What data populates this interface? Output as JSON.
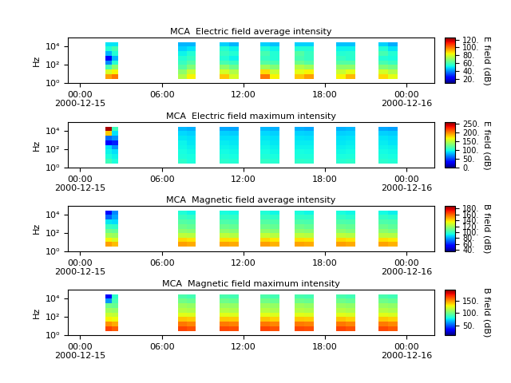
{
  "chart_data": [
    {
      "type": "heatmap",
      "title": "MCA  Electric field average intensity",
      "y_label": "Hz",
      "colorbar_label": "E field (dB)",
      "log": "y",
      "xlim": [
        -0.9,
        26.05
      ],
      "xticks": [
        {
          "value": 0,
          "label": "00:00\n2000-12-15"
        },
        {
          "value": 6,
          "label": "06:00"
        },
        {
          "value": 12,
          "label": "12:00"
        },
        {
          "value": 18,
          "label": "18:00"
        },
        {
          "value": 24,
          "label": "00:00\n2000-12-16"
        }
      ],
      "ylim": [
        1,
        100000
      ],
      "yticks": [
        {
          "value": 1,
          "label": "10⁰"
        },
        {
          "value": 100,
          "label": "10²"
        },
        {
          "value": 10000,
          "label": "10⁴"
        }
      ],
      "time_edges": [
        [
          1.87,
          2.34,
          2.81
        ],
        [
          7.2,
          7.85,
          8.49
        ],
        [
          10.25,
          10.95,
          11.65
        ],
        [
          13.23,
          13.93,
          14.64
        ],
        [
          15.8,
          16.5,
          17.2
        ],
        [
          18.85,
          19.55,
          20.26
        ],
        [
          21.96,
          22.66,
          23.36
        ]
      ],
      "freq_edges": [
        3,
        10,
        30,
        100,
        300,
        1000,
        3000,
        10000,
        30000
      ],
      "cells": [
        [
          [
            95,
            80,
            60,
            40,
            25,
            45,
            55,
            50
          ],
          [
            100,
            85,
            70,
            55,
            45,
            55,
            60,
            50
          ]
        ],
        [
          [
            75,
            70,
            62,
            58,
            55,
            52,
            48,
            45
          ],
          [
            85,
            78,
            68,
            62,
            58,
            55,
            50,
            45
          ]
        ],
        [
          [
            90,
            80,
            70,
            60,
            55,
            58,
            55,
            48
          ],
          [
            80,
            75,
            65,
            58,
            52,
            55,
            52,
            45
          ]
        ],
        [
          [
            100,
            88,
            72,
            62,
            58,
            60,
            55,
            48
          ],
          [
            85,
            78,
            68,
            60,
            55,
            55,
            52,
            46
          ]
        ],
        [
          [
            90,
            82,
            75,
            65,
            60,
            62,
            55,
            48
          ],
          [
            95,
            85,
            72,
            62,
            58,
            58,
            55,
            48
          ]
        ],
        [
          [
            85,
            78,
            70,
            62,
            58,
            55,
            52,
            46
          ],
          [
            92,
            82,
            70,
            62,
            56,
            56,
            52,
            46
          ]
        ],
        [
          [
            88,
            80,
            68,
            60,
            55,
            60,
            55,
            48
          ],
          [
            82,
            75,
            66,
            58,
            54,
            55,
            50,
            44
          ]
        ]
      ],
      "colorbar_range": [
        10,
        125
      ],
      "colorbar_ticks": [
        {
          "value": 20,
          "label": "20."
        },
        {
          "value": 40,
          "label": "40."
        },
        {
          "value": 60,
          "label": "60."
        },
        {
          "value": 80,
          "label": "80."
        },
        {
          "value": 100,
          "label": "100."
        },
        {
          "value": 120,
          "label": "120."
        }
      ]
    },
    {
      "type": "heatmap",
      "title": "MCA  Electric field maximum intensity",
      "y_label": "Hz",
      "colorbar_label": "E field (dB)",
      "log": "y",
      "xlim": [
        -0.9,
        26.05
      ],
      "xticks": [
        {
          "value": 0,
          "label": "00:00\n2000-12-15"
        },
        {
          "value": 6,
          "label": "06:00"
        },
        {
          "value": 12,
          "label": "12:00"
        },
        {
          "value": 18,
          "label": "18:00"
        },
        {
          "value": 24,
          "label": "00:00\n2000-12-16"
        }
      ],
      "ylim": [
        1,
        100000
      ],
      "yticks": [
        {
          "value": 1,
          "label": "10⁰"
        },
        {
          "value": 100,
          "label": "10²"
        },
        {
          "value": 10000,
          "label": "10⁴"
        }
      ],
      "time_edges": [
        [
          1.87,
          2.34,
          2.81
        ],
        [
          7.2,
          7.85,
          8.49
        ],
        [
          10.25,
          10.95,
          11.65
        ],
        [
          13.23,
          13.93,
          14.64
        ],
        [
          15.8,
          16.5,
          17.2
        ],
        [
          18.85,
          19.55,
          20.26
        ],
        [
          21.96,
          22.66,
          23.36
        ]
      ],
      "freq_edges": [
        3,
        10,
        30,
        100,
        300,
        1000,
        3000,
        10000,
        30000
      ],
      "cells": [
        [
          [
            110,
            100,
            95,
            90,
            30,
            60,
            180,
            250
          ],
          [
            100,
            95,
            90,
            70,
            40,
            70,
            90,
            110
          ]
        ],
        [
          [
            105,
            100,
            98,
            96,
            95,
            92,
            88,
            80
          ],
          [
            100,
            98,
            96,
            94,
            92,
            90,
            86,
            78
          ]
        ],
        [
          [
            104,
            100,
            97,
            95,
            93,
            90,
            86,
            76
          ],
          [
            102,
            98,
            96,
            94,
            92,
            90,
            85,
            75
          ]
        ],
        [
          [
            106,
            101,
            98,
            96,
            94,
            92,
            88,
            80
          ],
          [
            103,
            99,
            96,
            94,
            92,
            90,
            86,
            78
          ]
        ],
        [
          [
            105,
            100,
            98,
            95,
            93,
            91,
            87,
            78
          ],
          [
            104,
            100,
            97,
            95,
            93,
            90,
            86,
            76
          ]
        ],
        [
          [
            103,
            99,
            96,
            94,
            92,
            90,
            86,
            78
          ],
          [
            105,
            100,
            97,
            95,
            93,
            91,
            87,
            80
          ]
        ],
        [
          [
            104,
            100,
            97,
            95,
            93,
            91,
            86,
            76
          ],
          [
            102,
            98,
            96,
            94,
            91,
            89,
            85,
            74
          ]
        ]
      ],
      "colorbar_range": [
        0,
        260
      ],
      "colorbar_ticks": [
        {
          "value": 0,
          "label": "0."
        },
        {
          "value": 50,
          "label": "50."
        },
        {
          "value": 100,
          "label": "100."
        },
        {
          "value": 150,
          "label": "150."
        },
        {
          "value": 200,
          "label": "200."
        },
        {
          "value": 250,
          "label": "250."
        }
      ]
    },
    {
      "type": "heatmap",
      "title": "MCA  Magnetic field average intensity",
      "y_label": "Hz",
      "colorbar_label": "B field (dB)",
      "log": "y",
      "xlim": [
        -0.9,
        26.05
      ],
      "xticks": [
        {
          "value": 0,
          "label": "00:00\n2000-12-15"
        },
        {
          "value": 6,
          "label": "06:00"
        },
        {
          "value": 12,
          "label": "12:00"
        },
        {
          "value": 18,
          "label": "18:00"
        },
        {
          "value": 24,
          "label": "00:00\n2000-12-16"
        }
      ],
      "ylim": [
        1,
        100000
      ],
      "yticks": [
        {
          "value": 1,
          "label": "10⁰"
        },
        {
          "value": 100,
          "label": "10²"
        },
        {
          "value": 10000,
          "label": "10⁴"
        }
      ],
      "time_edges": [
        [
          1.87,
          2.34,
          2.81
        ],
        [
          7.2,
          7.85,
          8.49
        ],
        [
          10.25,
          10.95,
          11.65
        ],
        [
          13.23,
          13.93,
          14.64
        ],
        [
          15.8,
          16.5,
          17.2
        ],
        [
          18.85,
          19.55,
          20.26
        ],
        [
          21.96,
          22.66,
          23.36
        ]
      ],
      "freq_edges": [
        3,
        10,
        30,
        100,
        300,
        1000,
        3000,
        10000,
        30000
      ],
      "cells": [
        [
          [
            150,
            135,
            120,
            110,
            100,
            90,
            70,
            55
          ],
          [
            145,
            130,
            118,
            108,
            98,
            88,
            80,
            75
          ]
        ],
        [
          [
            150,
            140,
            125,
            115,
            110,
            105,
            100,
            95
          ],
          [
            148,
            138,
            124,
            114,
            108,
            104,
            98,
            92
          ]
        ],
        [
          [
            149,
            139,
            125,
            115,
            109,
            104,
            99,
            94
          ],
          [
            148,
            138,
            123,
            114,
            108,
            103,
            98,
            93
          ]
        ],
        [
          [
            150,
            140,
            126,
            116,
            110,
            105,
            100,
            95
          ],
          [
            147,
            137,
            124,
            114,
            108,
            104,
            98,
            92
          ]
        ],
        [
          [
            149,
            139,
            125,
            115,
            110,
            104,
            99,
            94
          ],
          [
            148,
            138,
            124,
            114,
            108,
            103,
            98,
            92
          ]
        ],
        [
          [
            150,
            140,
            125,
            115,
            109,
            104,
            99,
            94
          ],
          [
            148,
            138,
            123,
            113,
            108,
            103,
            97,
            92
          ]
        ],
        [
          [
            149,
            139,
            124,
            115,
            109,
            104,
            99,
            93
          ],
          [
            147,
            137,
            123,
            113,
            107,
            103,
            97,
            91
          ]
        ]
      ],
      "colorbar_range": [
        35,
        190
      ],
      "colorbar_ticks": [
        {
          "value": 40,
          "label": "40."
        },
        {
          "value": 60,
          "label": "60."
        },
        {
          "value": 80,
          "label": "80."
        },
        {
          "value": 100,
          "label": "100."
        },
        {
          "value": 120,
          "label": "120."
        },
        {
          "value": 140,
          "label": "140."
        },
        {
          "value": 160,
          "label": "160."
        },
        {
          "value": 180,
          "label": "180."
        }
      ]
    },
    {
      "type": "heatmap",
      "title": "MCA  Magnetic field maximum intensity",
      "y_label": "Hz",
      "colorbar_label": "B field (dB)",
      "log": "y",
      "xlim": [
        -0.9,
        26.05
      ],
      "xticks": [
        {
          "value": 0,
          "label": "00:00\n2000-12-15"
        },
        {
          "value": 6,
          "label": "06:00"
        },
        {
          "value": 12,
          "label": "12:00"
        },
        {
          "value": 18,
          "label": "18:00"
        },
        {
          "value": 24,
          "label": "00:00\n2000-12-16"
        }
      ],
      "ylim": [
        1,
        100000
      ],
      "yticks": [
        {
          "value": 1,
          "label": "10⁰"
        },
        {
          "value": 100,
          "label": "10²"
        },
        {
          "value": 10000,
          "label": "10⁴"
        }
      ],
      "time_edges": [
        [
          1.87,
          2.34,
          2.81
        ],
        [
          7.2,
          7.85,
          8.49
        ],
        [
          10.25,
          10.95,
          11.65
        ],
        [
          13.23,
          13.93,
          14.64
        ],
        [
          15.8,
          16.5,
          17.2
        ],
        [
          18.85,
          19.55,
          20.26
        ],
        [
          21.96,
          22.66,
          23.36
        ]
      ],
      "freq_edges": [
        3,
        10,
        30,
        100,
        300,
        1000,
        3000,
        10000,
        30000
      ],
      "cells": [
        [
          [
            165,
            150,
            130,
            120,
            110,
            100,
            60,
            30
          ],
          [
            160,
            145,
            128,
            118,
            108,
            98,
            90,
            85
          ]
        ],
        [
          [
            165,
            155,
            140,
            125,
            115,
            110,
            100,
            92
          ],
          [
            162,
            152,
            138,
            124,
            114,
            108,
            98,
            90
          ]
        ],
        [
          [
            164,
            154,
            139,
            125,
            115,
            109,
            99,
            91
          ],
          [
            163,
            153,
            138,
            124,
            114,
            108,
            98,
            90
          ]
        ],
        [
          [
            165,
            155,
            140,
            126,
            116,
            110,
            100,
            92
          ],
          [
            162,
            152,
            137,
            124,
            113,
            108,
            98,
            90
          ]
        ],
        [
          [
            164,
            154,
            139,
            125,
            115,
            110,
            99,
            91
          ],
          [
            163,
            153,
            138,
            124,
            114,
            108,
            98,
            90
          ]
        ],
        [
          [
            165,
            155,
            140,
            125,
            115,
            109,
            99,
            91
          ],
          [
            162,
            152,
            137,
            123,
            113,
            107,
            97,
            89
          ]
        ],
        [
          [
            164,
            154,
            139,
            125,
            115,
            109,
            99,
            91
          ],
          [
            161,
            151,
            137,
            123,
            113,
            107,
            97,
            89
          ]
        ]
      ],
      "colorbar_range": [
        10,
        195
      ],
      "colorbar_ticks": [
        {
          "value": 50,
          "label": "50."
        },
        {
          "value": 100,
          "label": "100."
        },
        {
          "value": 150,
          "label": "150."
        }
      ]
    }
  ]
}
